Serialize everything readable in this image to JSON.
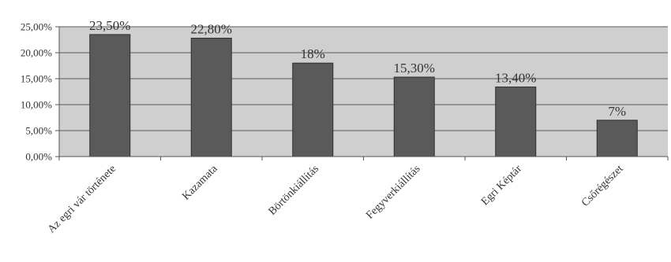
{
  "chart_data": {
    "type": "bar",
    "categories": [
      "Az egri vár története",
      "Kazamata",
      "Börtönkiállítás",
      "Fegyverkiállítás",
      "Egri Képtár",
      "Csőrégészet"
    ],
    "values": [
      23.5,
      22.8,
      18,
      15.3,
      13.4,
      7
    ],
    "data_labels": [
      "23,50%",
      "22,80%",
      "18%",
      "15,30%",
      "13,40%",
      "7%"
    ],
    "y_ticks": [
      0,
      5,
      10,
      15,
      20,
      25
    ],
    "y_tick_labels": [
      "0,00%",
      "5,00%",
      "10,00%",
      "15,00%",
      "20,00%",
      "25,00%"
    ],
    "ylim": [
      0,
      25
    ],
    "grid": true,
    "legend": "none",
    "title": "",
    "xlabel": "",
    "ylabel": "",
    "colors": {
      "bar": "#5a5a5a",
      "plot_background": "#cfcfcf",
      "gridline": "#5a5a5a"
    }
  }
}
